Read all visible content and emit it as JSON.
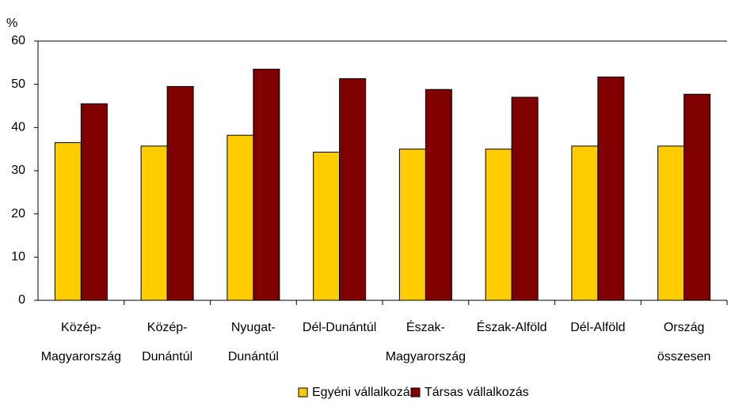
{
  "chart_data": {
    "type": "bar",
    "y_label": "%",
    "categories": [
      [
        "Közép-",
        "Magyarország"
      ],
      [
        "Közép-",
        "Dunántúl"
      ],
      [
        "Nyugat-",
        "Dunántúl"
      ],
      [
        "Dél-Dunántúl"
      ],
      [
        "Észak-",
        "Magyarország"
      ],
      [
        "Észak-Alföld"
      ],
      [
        "Dél-Alföld"
      ],
      [
        "Ország",
        "összesen"
      ]
    ],
    "series": [
      {
        "name": "Egyéni vállalkozás",
        "color": "#ffcc00",
        "values": [
          36.5,
          35.7,
          38.2,
          34.3,
          35,
          35,
          35.7,
          35.7
        ]
      },
      {
        "name": "Társas vállalkozás",
        "color": "#800000",
        "values": [
          45.5,
          49.5,
          53.5,
          51.3,
          48.8,
          47,
          51.7,
          47.7
        ]
      }
    ],
    "ylim": [
      0,
      60
    ],
    "yticks": [
      0,
      10,
      20,
      30,
      40,
      50,
      60
    ],
    "grid": false,
    "legend": "bottom"
  }
}
